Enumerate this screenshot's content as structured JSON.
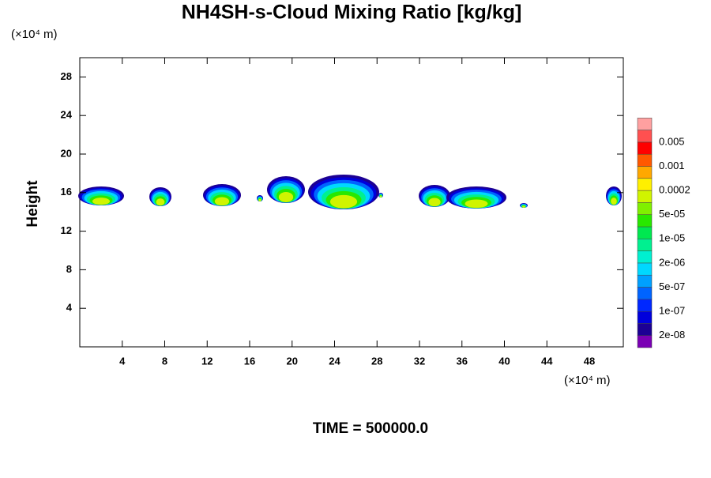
{
  "chart_data": {
    "type": "contour",
    "title": "NH4SH-s-Cloud Mixing Ratio [kg/kg]",
    "ylabel": "Height",
    "xunit": "(×10⁴ m)",
    "yunit": "(×10⁴ m)",
    "footer": "TIME = 500000.0",
    "xlim": [
      0,
      51.2
    ],
    "ylim": [
      0,
      30
    ],
    "xticks": [
      4,
      8,
      12,
      16,
      20,
      24,
      28,
      32,
      36,
      40,
      44,
      48
    ],
    "yticks": [
      4,
      8,
      12,
      16,
      20,
      24,
      28
    ],
    "colorbar": {
      "colors": [
        "#7a00b4",
        "#1c0094",
        "#0000dc",
        "#0028ff",
        "#0064ff",
        "#00a0ff",
        "#00d8ff",
        "#00f0d0",
        "#00f090",
        "#00e850",
        "#28e800",
        "#80f000",
        "#d0f400",
        "#fff000",
        "#ffa800",
        "#ff5800",
        "#ff0000",
        "#ff5050",
        "#ffa0a0"
      ],
      "ticks": [
        {
          "value": 2e-08,
          "label": "2e-08"
        },
        {
          "value": 1e-07,
          "label": "1e-07"
        },
        {
          "value": 5e-07,
          "label": "5e-07"
        },
        {
          "value": 2e-06,
          "label": "2e-06"
        },
        {
          "value": 1e-05,
          "label": "1e-05"
        },
        {
          "value": 5e-05,
          "label": "5e-05"
        },
        0.0002,
        0.001,
        0.005
      ]
    }
  }
}
